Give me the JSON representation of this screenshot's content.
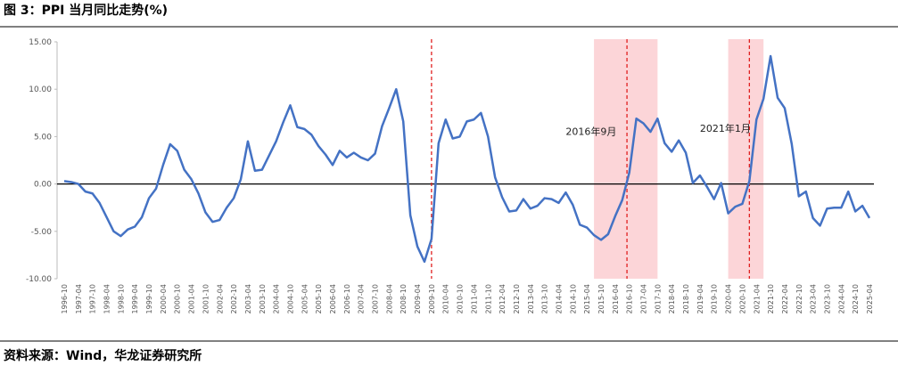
{
  "chart_data": {
    "type": "line",
    "title": "图 3：PPI 当月同比走势(%)",
    "source": "资料来源：Wind，华龙证券研究所",
    "categories": [
      "1996-10",
      null,
      "1997-04",
      null,
      "1997-10",
      null,
      "1998-04",
      null,
      "1998-10",
      null,
      "1999-04",
      null,
      "1999-10",
      null,
      "2000-04",
      null,
      "2000-10",
      null,
      "2001-04",
      null,
      "2001-10",
      null,
      "2002-04",
      null,
      "2002-10",
      null,
      "2003-04",
      null,
      "2003-10",
      null,
      "2004-04",
      null,
      "2004-10",
      null,
      "2005-04",
      null,
      "2005-10",
      null,
      "2006-04",
      null,
      "2006-10",
      null,
      "2007-04",
      null,
      "2007-10",
      null,
      "2008-04",
      null,
      "2008-10",
      null,
      "2009-04",
      null,
      "2009-10",
      null,
      "2010-04",
      null,
      "2010-10",
      null,
      "2011-04",
      null,
      "2011-10",
      null,
      "2012-04",
      null,
      "2012-10",
      null,
      "2013-04",
      null,
      "2013-10",
      null,
      "2014-04",
      null,
      "2014-10",
      null,
      "2015-04",
      null,
      "2015-10",
      null,
      "2016-04",
      null,
      "2016-10",
      null,
      "2017-04",
      null,
      "2017-10",
      null,
      "2018-04",
      null,
      "2018-10",
      null,
      "2019-04",
      null,
      "2019-10",
      null,
      "2020-04",
      null,
      "2020-10",
      null,
      "2021-04",
      null,
      "2021-10",
      null,
      "2022-04",
      null,
      "2022-10",
      null,
      "2023-04",
      null,
      "2023-10",
      null,
      "2024-04",
      null,
      "2024-10",
      null,
      "2025-04"
    ],
    "series": [
      {
        "name": "PPI当月同比",
        "color": "#4472c4",
        "values": [
          0.3,
          0.2,
          0.0,
          -0.8,
          -1.0,
          -2.0,
          -3.5,
          -5.0,
          -5.5,
          -4.8,
          -4.5,
          -3.5,
          -1.5,
          -0.5,
          2.0,
          4.2,
          3.5,
          1.5,
          0.5,
          -1.0,
          -3.0,
          -4.0,
          -3.8,
          -2.5,
          -1.5,
          0.5,
          4.5,
          1.4,
          1.5,
          3.0,
          4.5,
          6.5,
          8.3,
          6.0,
          5.8,
          5.2,
          4.0,
          3.1,
          2.0,
          3.5,
          2.8,
          3.3,
          2.8,
          2.5,
          3.2,
          6.1,
          8.0,
          10.0,
          6.6,
          -3.3,
          -6.6,
          -8.2,
          -5.8,
          4.3,
          6.8,
          4.8,
          5.0,
          6.6,
          6.8,
          7.5,
          5.0,
          0.7,
          -1.4,
          -2.9,
          -2.8,
          -1.6,
          -2.6,
          -2.3,
          -1.5,
          -1.6,
          -2.0,
          -0.9,
          -2.2,
          -4.3,
          -4.6,
          -5.4,
          -5.9,
          -5.3,
          -3.4,
          -1.7,
          1.2,
          6.9,
          6.4,
          5.5,
          6.9,
          4.3,
          3.4,
          4.6,
          3.3,
          0.1,
          0.9,
          -0.3,
          -1.6,
          0.1,
          -3.1,
          -2.4,
          -2.1,
          0.3,
          6.8,
          9.0,
          13.5,
          9.1,
          8.0,
          4.2,
          -1.3,
          -0.8,
          -3.6,
          -4.4,
          -2.6,
          -2.5,
          -2.5,
          -0.8,
          -2.9,
          -2.3,
          -3.6
        ]
      }
    ],
    "ylim": [
      -10,
      15
    ],
    "yticks": [
      {
        "value": -10,
        "label": "-10.00"
      },
      {
        "value": -5,
        "label": "-5.00"
      },
      {
        "value": 0,
        "label": "0.00"
      },
      {
        "value": 5,
        "label": "5.00"
      },
      {
        "value": 10,
        "label": "10.00"
      },
      {
        "value": 15,
        "label": "15.00"
      }
    ],
    "vlines": [
      52,
      79.67,
      97
    ],
    "shaded": [
      [
        75,
        84
      ],
      [
        94,
        99
      ]
    ],
    "annotations": [
      {
        "text": "2016年9月",
        "x": 71,
        "y": 5.2
      },
      {
        "text": "2021年1月",
        "x": 90,
        "y": 5.5
      }
    ]
  }
}
